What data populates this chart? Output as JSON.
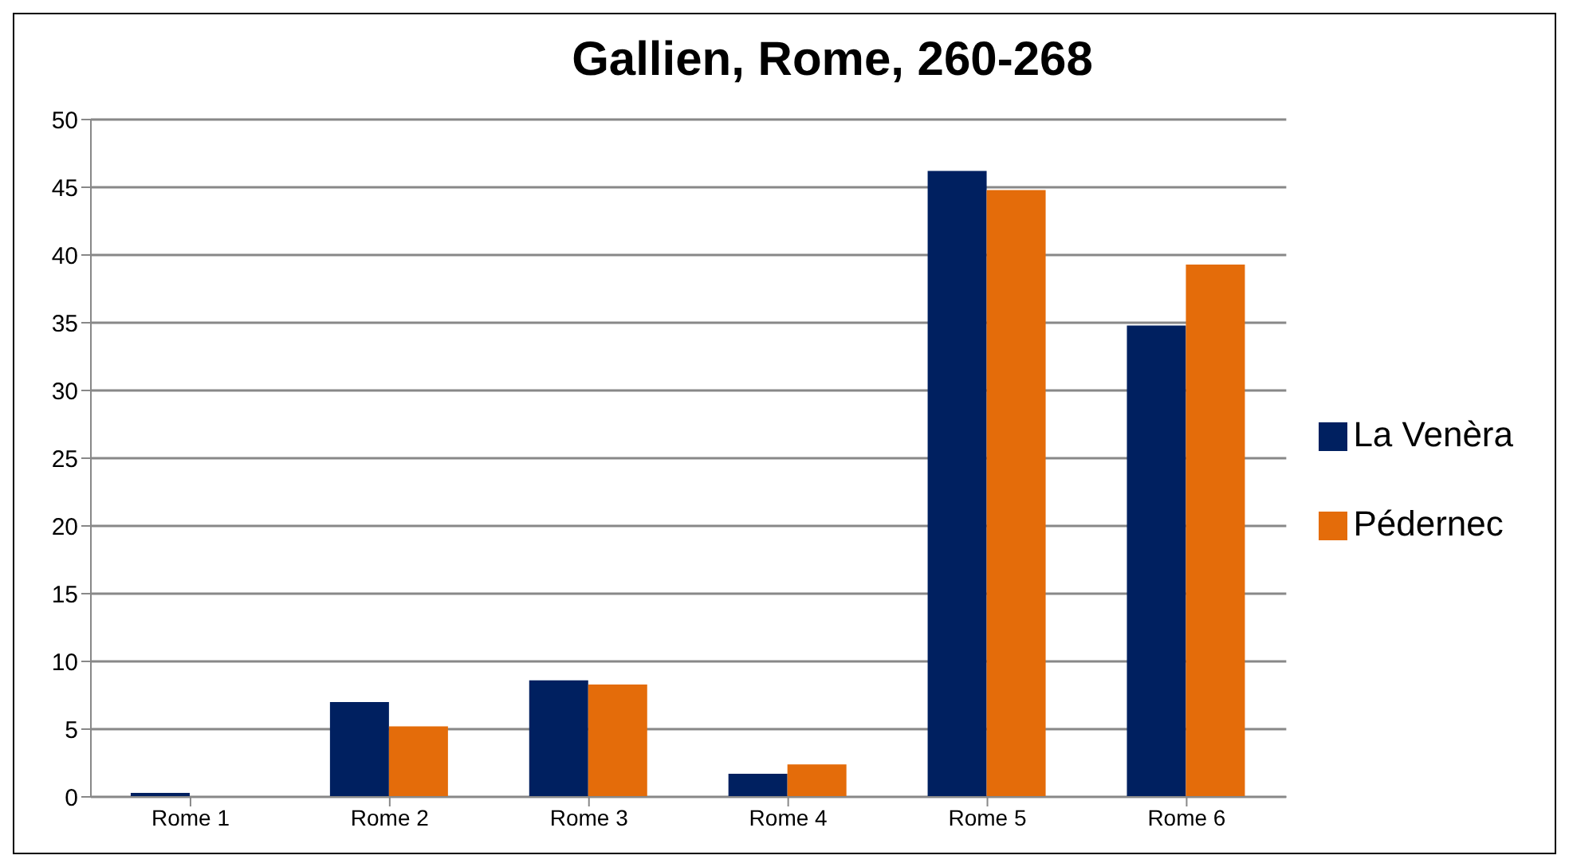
{
  "chart_data": {
    "type": "bar",
    "title": "Gallien, Rome,  260-268",
    "categories": [
      "Rome 1",
      "Rome 2",
      "Rome 3",
      "Rome 4",
      "Rome 5",
      "Rome 6"
    ],
    "series": [
      {
        "name": "La Venèra",
        "color": "#002060",
        "values": [
          0.3,
          7.0,
          8.6,
          1.7,
          46.2,
          34.8
        ]
      },
      {
        "name": "Pédernec",
        "color": "#e46c0a",
        "values": [
          0,
          5.2,
          8.3,
          2.4,
          44.8,
          39.3
        ]
      }
    ],
    "ylim": [
      0,
      50
    ],
    "yticks": [
      0,
      5,
      10,
      15,
      20,
      25,
      30,
      35,
      40,
      45,
      50
    ],
    "grid": "y",
    "legend": "right"
  }
}
